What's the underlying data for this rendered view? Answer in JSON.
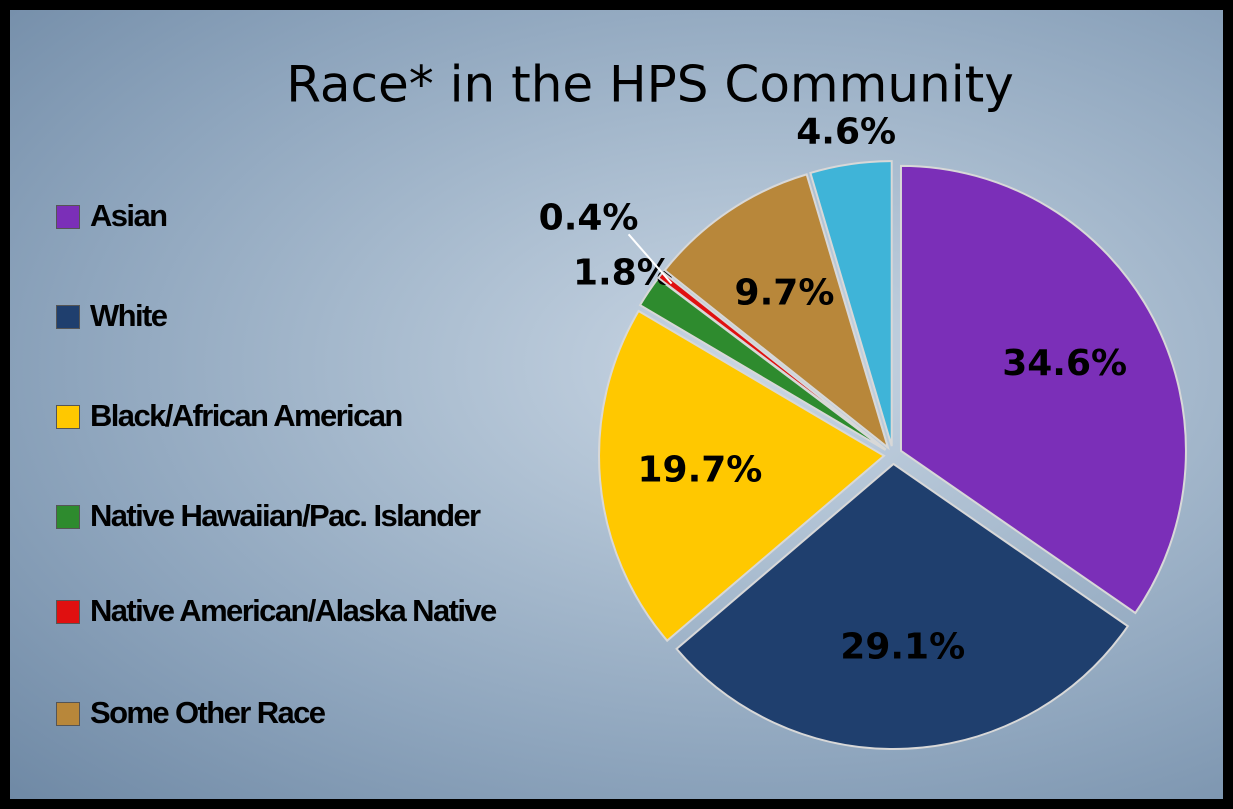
{
  "chart_data": {
    "type": "pie",
    "title": "Race* in the HPS Community",
    "categories": [
      "Asian",
      "White",
      "Black/African American",
      "Native Hawaiian/Pac. Islander",
      "Native American/Alaska Native",
      "Some Other Race",
      null
    ],
    "values": [
      34.6,
      29.1,
      19.7,
      1.8,
      0.4,
      9.7,
      4.6
    ],
    "value_labels": [
      "34.6%",
      "29.1%",
      "19.7%",
      "1.8%",
      "0.4%",
      "9.7%",
      "4.6%"
    ],
    "colors": [
      "#7b2fb8",
      "#1f3f6e",
      "#ffc800",
      "#2e8b2e",
      "#e01010",
      "#b8873a",
      "#3fb4d8"
    ],
    "legend": "left"
  }
}
